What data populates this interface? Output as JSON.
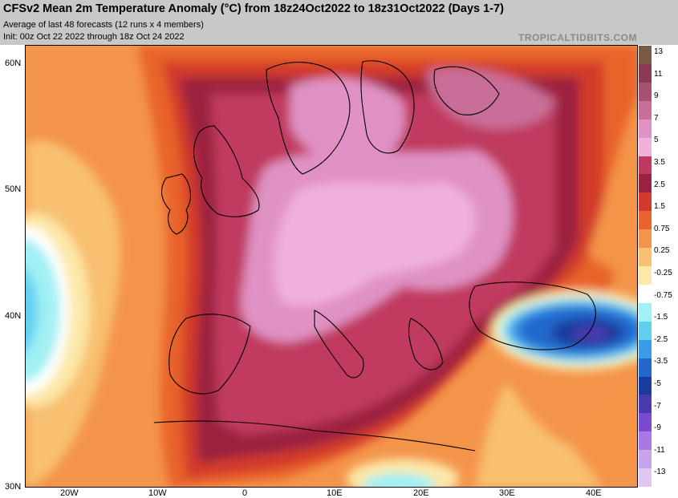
{
  "header": {
    "title": "CFSv2 Mean 2m Temperature Anomaly (°C) from 18z24Oct2022 to 18z31Oct2022 (Days 1-7)",
    "subtitle1": "Average of last 48 forecasts (12 runs x 4 members)",
    "subtitle2": "Init: 00z Oct 22 2022 through 18z Oct 24 2022",
    "brand": "TROPICALTIDBITS.COM"
  },
  "map": {
    "region": "Europe",
    "lat_labels": [
      "60N",
      "50N",
      "40N",
      "30N"
    ],
    "lon_labels": [
      "20W",
      "10W",
      "0",
      "10E",
      "20E",
      "30E",
      "40E"
    ]
  },
  "legend": {
    "ticks": [
      "13",
      "11",
      "9",
      "7",
      "5",
      "3.5",
      "2.5",
      "1.5",
      "0.75",
      "0.25",
      "-0.25",
      "-0.75",
      "-1.5",
      "-2.5",
      "-3.5",
      "-5",
      "-7",
      "-9",
      "-11",
      "-13"
    ],
    "colors": [
      "#7a5a44",
      "#8a3a52",
      "#a85070",
      "#c86e98",
      "#e092c4",
      "#f0b0dc",
      "#c03a5e",
      "#9c2040",
      "#d23a2c",
      "#e8642c",
      "#f4944a",
      "#f8c070",
      "#fce8a8",
      "#ffffff",
      "#a0f0f4",
      "#60d0f0",
      "#3a9ce8",
      "#2468cc",
      "#1a3a9c",
      "#4a3ab0",
      "#7a4ad0",
      "#a878e4",
      "#c8a4ec",
      "#e0c8f0"
    ]
  }
}
